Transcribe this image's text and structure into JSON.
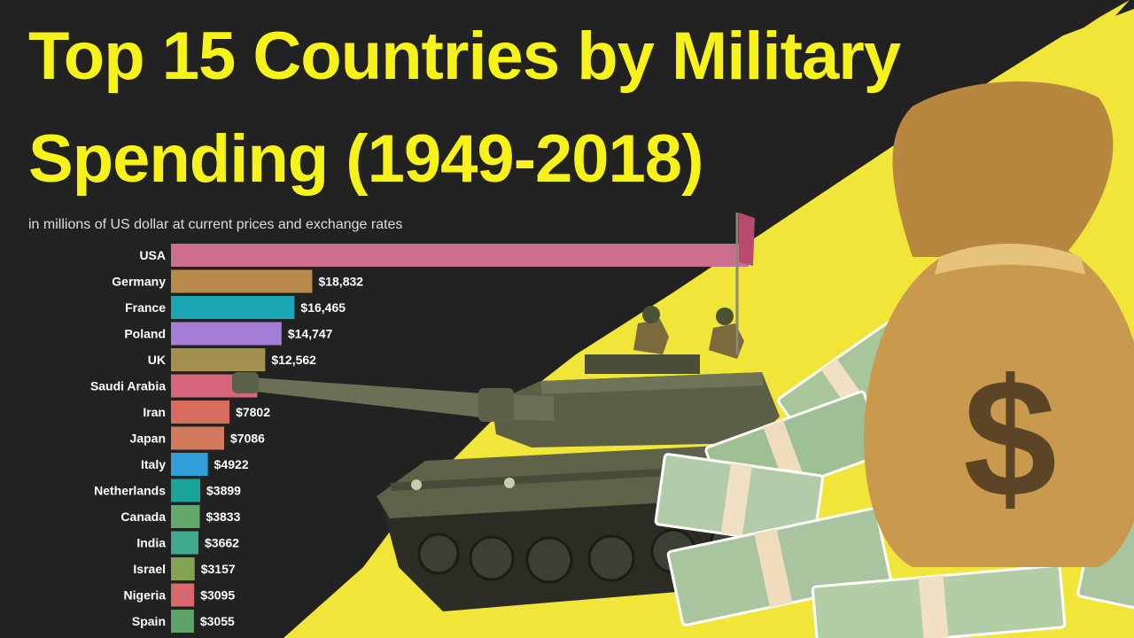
{
  "title_line_1": "Top 15 Countries by Military",
  "title_line_2": "Spending (1949-2018)",
  "subtitle": "in millions of US dollar at current prices and exchange rates",
  "chart_data": {
    "type": "bar",
    "orientation": "horizontal",
    "title": "Top 15 Countries by Military Spending (1949-2018)",
    "subtitle": "in millions of US dollar at current prices and exchange rates",
    "categories": [
      "USA",
      "Germany",
      "France",
      "Poland",
      "UK",
      "Saudi Arabia",
      "Iran",
      "Japan",
      "Italy",
      "Netherlands",
      "Canada",
      "India",
      "Israel",
      "Nigeria",
      "Spain"
    ],
    "values": [
      77000,
      18832,
      16465,
      14747,
      12562,
      11500,
      7802,
      7086,
      4922,
      3899,
      3833,
      3662,
      3157,
      3095,
      3055
    ],
    "value_labels": [
      "",
      "$18,832",
      "$16,465",
      "$14,747",
      "$12,562",
      "",
      "$7802",
      "$7086",
      "$4922",
      "$3899",
      "$3833",
      "$3662",
      "$3157",
      "$3095",
      "$3055"
    ],
    "colors": [
      "#cc6e8f",
      "#b88a4c",
      "#1aa5b5",
      "#a47ed6",
      "#a4904e",
      "#d7667c",
      "#d86c60",
      "#d17a5c",
      "#329ed8",
      "#19a49a",
      "#64a96c",
      "#3fa98a",
      "#84a350",
      "#d8686b",
      "#5fa267"
    ]
  },
  "colors": {
    "background": "#222222",
    "title": "#f6f21a",
    "accent_splash": "#f2e53a"
  },
  "images": {
    "tank": "military tank with two soldiers",
    "money_bag": "money bag with dollar sign",
    "cash": "stacks of 100 dollar bills"
  }
}
